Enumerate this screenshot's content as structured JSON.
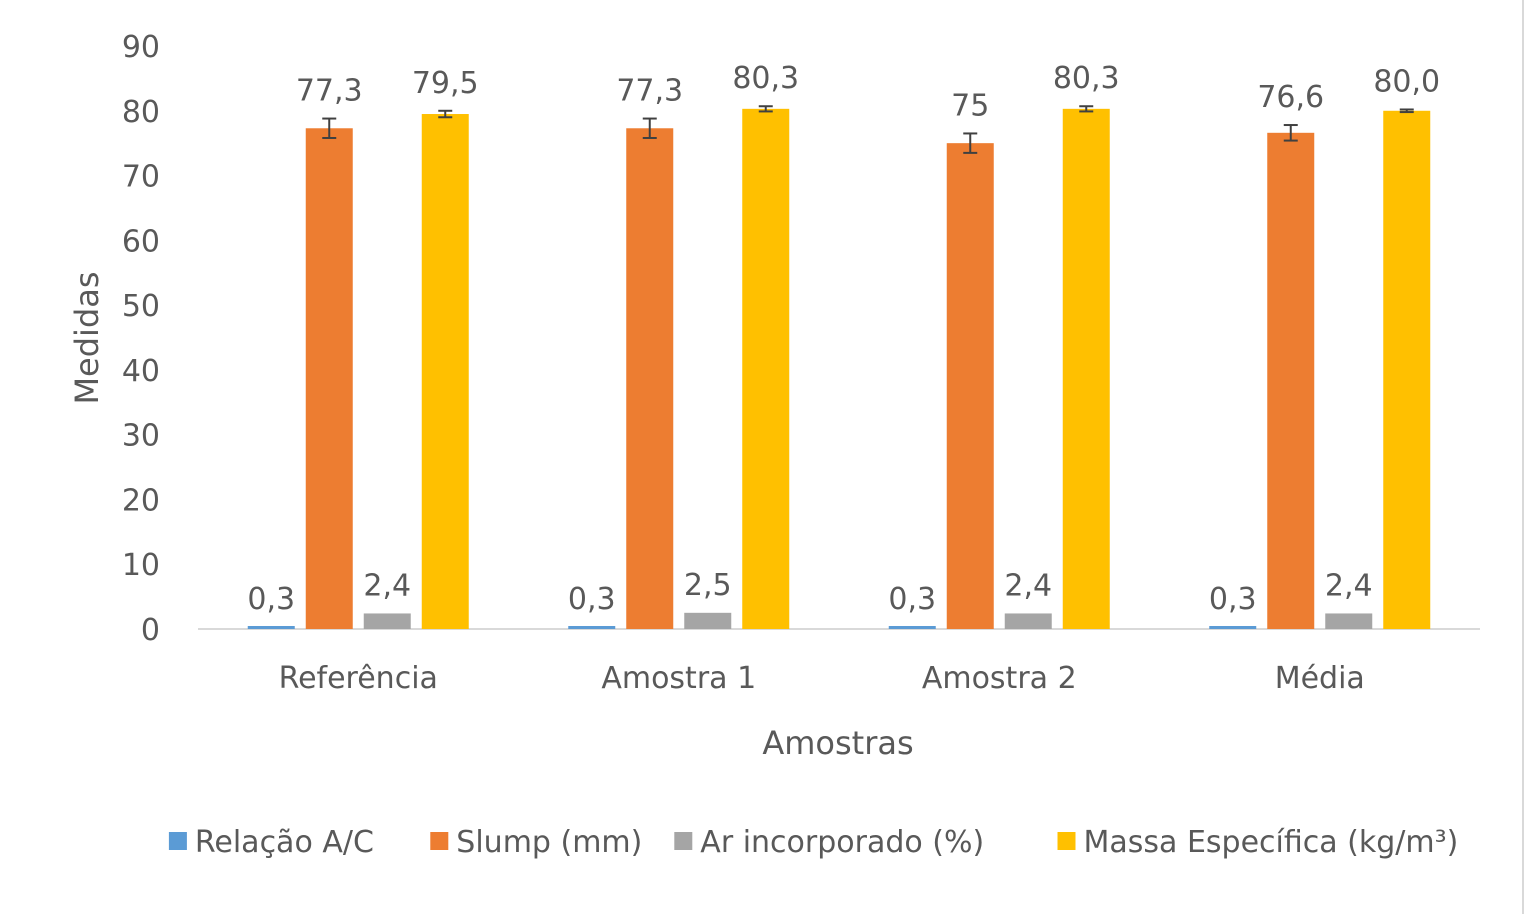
{
  "chart_data": {
    "type": "bar",
    "title": "",
    "xlabel": "Amostras",
    "ylabel": "Medidas",
    "ylim": [
      0,
      90
    ],
    "yticks": [
      "0",
      "10",
      "20",
      "30",
      "40",
      "50",
      "60",
      "70",
      "80",
      "90"
    ],
    "grid": false,
    "legend_position": "bottom",
    "categories": [
      "Referência",
      "Amostra 1",
      "Amostra 2",
      "Média"
    ],
    "series": [
      {
        "name": "Relação A/C",
        "color": "#5B9BD5",
        "values": [
          0.3,
          0.3,
          0.3,
          0.3
        ],
        "labels": [
          "0,3",
          "0,3",
          "0,3",
          "0,3"
        ],
        "error": [
          0,
          0,
          0,
          0
        ]
      },
      {
        "name": "Slump (mm)",
        "color": "#ED7D31",
        "values": [
          77.3,
          77.3,
          75,
          76.6
        ],
        "labels": [
          "77,3",
          "77,3",
          "75",
          "76,6"
        ],
        "error": [
          1.5,
          1.5,
          1.5,
          1.2
        ]
      },
      {
        "name": "Ar incorporado (%)",
        "color": "#A5A5A5",
        "values": [
          2.4,
          2.5,
          2.4,
          2.4
        ],
        "labels": [
          "2,4",
          "2,5",
          "2,4",
          "2,4"
        ],
        "error": [
          0,
          0,
          0,
          0
        ]
      },
      {
        "name": "Massa Específica (kg/m³)",
        "color": "#FFC000",
        "values": [
          79.5,
          80.3,
          80.3,
          80.0
        ],
        "labels": [
          "79,5",
          "80,3",
          "80,3",
          "80,0"
        ],
        "error": [
          0.5,
          0.4,
          0.4,
          0.2
        ]
      }
    ]
  }
}
